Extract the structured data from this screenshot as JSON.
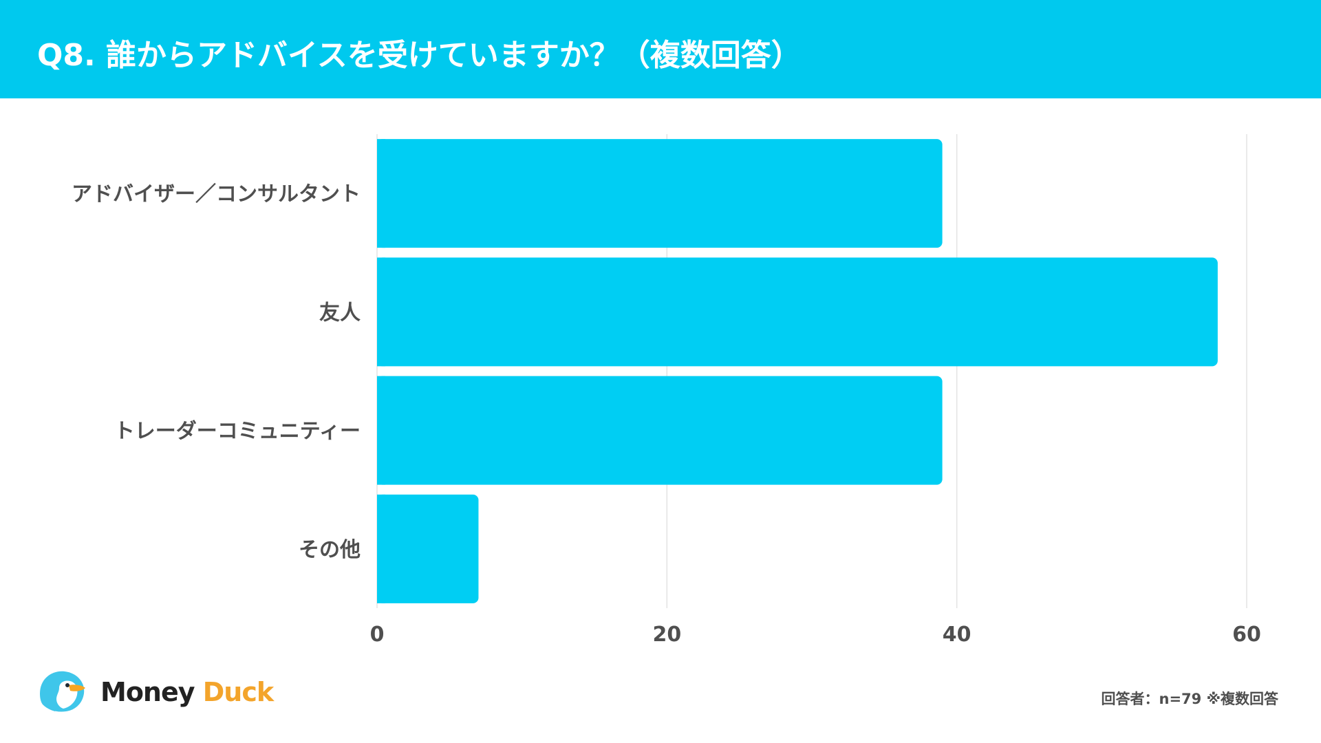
{
  "header": {
    "title": "Q8. 誰からアドバイスを受けていますか？（複数回答）",
    "background": "#00c9ee"
  },
  "chart_data": {
    "type": "bar",
    "orientation": "horizontal",
    "categories": [
      "アドバイザー／コンサルタント",
      "友人",
      "トレーダーコミュニティー",
      "その他"
    ],
    "values": [
      39,
      58,
      39,
      7
    ],
    "xlim": [
      0,
      60
    ],
    "xticks": [
      "0",
      "20",
      "40",
      "60"
    ],
    "grid": true,
    "bar_color": "#00cef3"
  },
  "logo": {
    "word1": "Money",
    "word2": "Duck",
    "icon": "duck-icon"
  },
  "footnote": "回答者：n=79 ※複数回答"
}
